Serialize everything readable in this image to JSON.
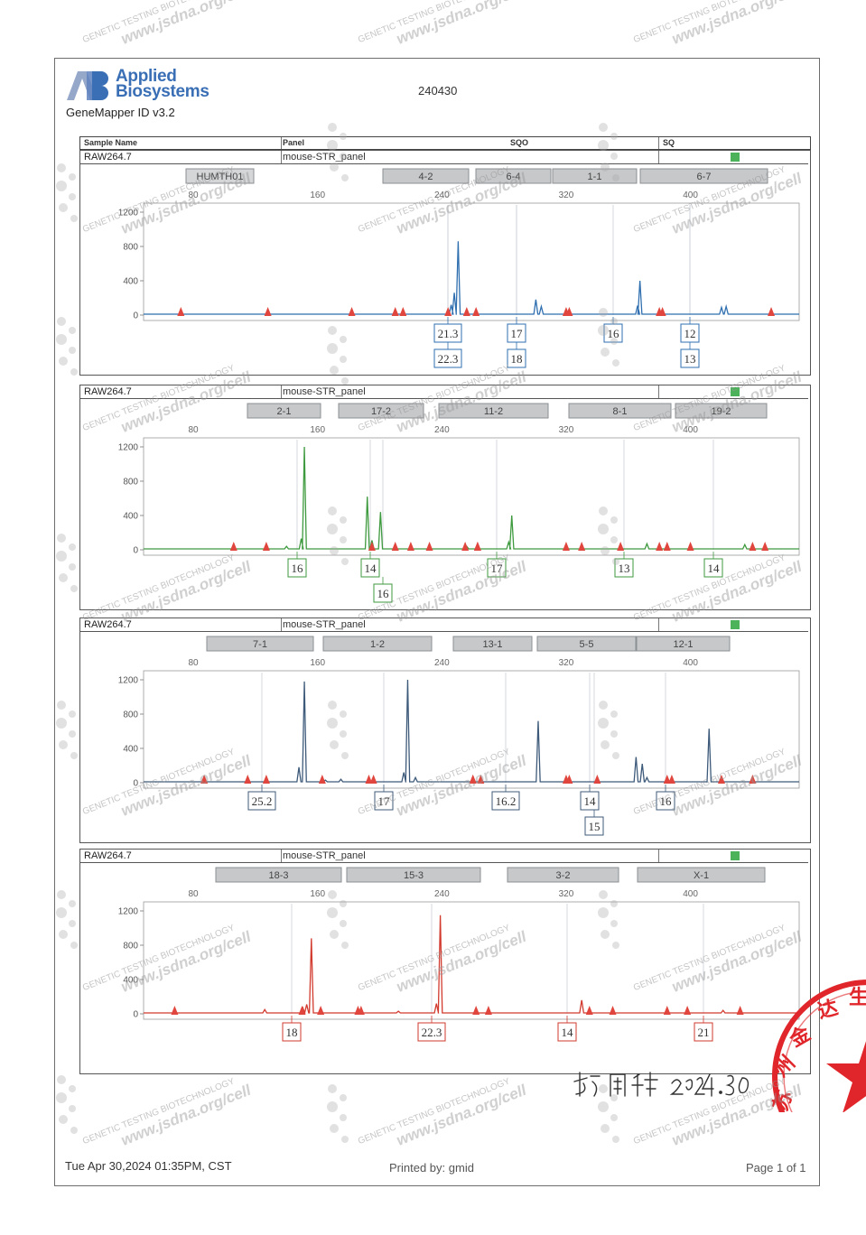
{
  "header": {
    "logo_line1": "Applied",
    "logo_line2": "Biosystems",
    "software": "GeneMapper ID v3.2",
    "report_id": "240430"
  },
  "columns": {
    "sample_name": "Sample Name",
    "panel": "Panel",
    "sqo": "SQO",
    "sq": "SQ"
  },
  "watermark": {
    "line1": "GENETIC TESTING BIOTECHNOLOGY",
    "line2": "www.jsdna.org/cell"
  },
  "axis": {
    "x_ticks": [
      "80",
      "160",
      "240",
      "320",
      "400"
    ],
    "y_ticks": [
      "1200",
      "800",
      "400",
      "0"
    ]
  },
  "panels": [
    {
      "sample": "RAW264.7",
      "panel": "mouse-STR_panel",
      "color": "#2f6fb0",
      "markers": [
        "HUMTH01",
        "4-2",
        "6-4",
        "1-1",
        "6-7"
      ],
      "alleles": [
        {
          "label": "21.3",
          "row": 1
        },
        {
          "label": "22.3",
          "row": 2
        },
        {
          "label": "17",
          "row": 1
        },
        {
          "label": "18",
          "row": 2
        },
        {
          "label": "16",
          "row": 1
        },
        {
          "label": "12",
          "row": 1
        },
        {
          "label": "13",
          "row": 2
        }
      ],
      "peaks": [
        {
          "x": 250.5,
          "h": 860
        },
        {
          "x": 248.0,
          "h": 260
        },
        {
          "x": 246.0,
          "h": 120
        },
        {
          "x": 300.5,
          "h": 180
        },
        {
          "x": 304.0,
          "h": 100
        },
        {
          "x": 367.5,
          "h": 400
        },
        {
          "x": 366.0,
          "h": 110
        },
        {
          "x": 420.0,
          "h": 90
        },
        {
          "x": 423.0,
          "h": 100
        }
      ]
    },
    {
      "sample": "RAW264.7",
      "panel": "mouse-STR_panel",
      "color": "#3e9a3e",
      "markers": [
        "2-1",
        "17-2",
        "11-2",
        "8-1",
        "19-2"
      ],
      "alleles": [
        {
          "label": "16",
          "row": 1
        },
        {
          "label": "14",
          "row": 1
        },
        {
          "label": "16",
          "row": 2
        },
        {
          "label": "17",
          "row": 1
        },
        {
          "label": "13",
          "row": 1
        },
        {
          "label": "14",
          "row": 1
        }
      ],
      "peaks": [
        {
          "x": 151.5,
          "h": 1200
        },
        {
          "x": 149.5,
          "h": 130
        },
        {
          "x": 140.0,
          "h": 40
        },
        {
          "x": 192.0,
          "h": 620
        },
        {
          "x": 195.0,
          "h": 110
        },
        {
          "x": 200.5,
          "h": 440
        },
        {
          "x": 285.0,
          "h": 400
        },
        {
          "x": 283.0,
          "h": 90
        },
        {
          "x": 256.0,
          "h": 40
        },
        {
          "x": 372.0,
          "h": 70
        },
        {
          "x": 435.0,
          "h": 60
        }
      ]
    },
    {
      "sample": "RAW264.7",
      "panel": "mouse-STR_panel",
      "color": "#3d5a7a",
      "markers": [
        "7-1",
        "1-2",
        "13-1",
        "5-5",
        "12-1"
      ],
      "alleles": [
        {
          "label": "25.2",
          "row": 1
        },
        {
          "label": "17",
          "row": 1
        },
        {
          "label": "16.2",
          "row": 1
        },
        {
          "label": "14",
          "row": 1
        },
        {
          "label": "15",
          "row": 2
        },
        {
          "label": "16",
          "row": 1
        }
      ],
      "peaks": [
        {
          "x": 151.5,
          "h": 1180
        },
        {
          "x": 148.0,
          "h": 180
        },
        {
          "x": 218.0,
          "h": 1200
        },
        {
          "x": 215.5,
          "h": 120
        },
        {
          "x": 223.0,
          "h": 60
        },
        {
          "x": 302.0,
          "h": 720
        },
        {
          "x": 365.0,
          "h": 300
        },
        {
          "x": 369.0,
          "h": 220
        },
        {
          "x": 372.0,
          "h": 60
        },
        {
          "x": 412.0,
          "h": 630
        },
        {
          "x": 175.0,
          "h": 40
        },
        {
          "x": 165.0,
          "h": 30
        }
      ]
    },
    {
      "sample": "RAW264.7",
      "panel": "mouse-STR_panel",
      "color": "#d23a2e",
      "markers": [
        "18-3",
        "15-3",
        "3-2",
        "X-1"
      ],
      "alleles": [
        {
          "label": "18",
          "row": 1
        },
        {
          "label": "22.3",
          "row": 1
        },
        {
          "label": "14",
          "row": 1
        },
        {
          "label": "21",
          "row": 1
        }
      ],
      "peaks": [
        {
          "x": 156.0,
          "h": 880
        },
        {
          "x": 153.0,
          "h": 110
        },
        {
          "x": 150.5,
          "h": 70
        },
        {
          "x": 239.0,
          "h": 1150
        },
        {
          "x": 236.5,
          "h": 120
        },
        {
          "x": 330.0,
          "h": 160
        },
        {
          "x": 421.0,
          "h": 40
        },
        {
          "x": 126.0,
          "h": 50
        },
        {
          "x": 212.0,
          "h": 30
        }
      ]
    }
  ],
  "signature": {
    "text": "赵国坤 2024.4.30"
  },
  "seal": {
    "text": "苏州金达生物 检验 电子"
  },
  "footer": {
    "date": "Tue Apr 30,2024 01:35PM, CST",
    "printed_by": "Printed by: gmid",
    "page": "Page 1 of 1"
  }
}
